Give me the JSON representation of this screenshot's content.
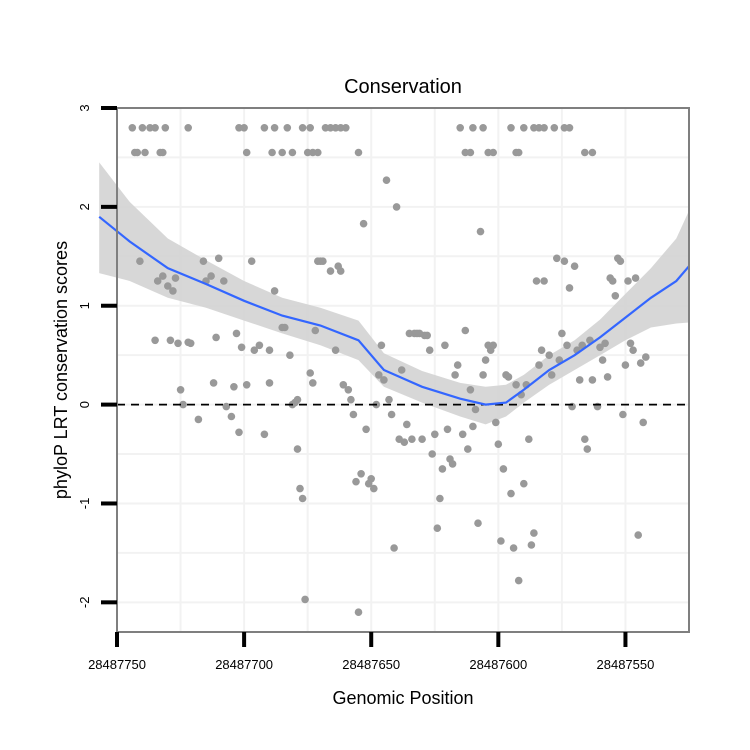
{
  "chart_data": {
    "type": "scatter",
    "title": "Conservation",
    "xlabel": "Genomic Position",
    "ylabel": "phyloP LRT conservation scores",
    "xlim": [
      28487750,
      28487525
    ],
    "x_reversed": true,
    "ylim": [
      -2.3,
      3
    ],
    "x_ticks": [
      28487750,
      28487700,
      28487650,
      28487600,
      28487550
    ],
    "y_ticks": [
      -2,
      -1,
      0,
      1,
      2,
      3
    ],
    "grid": true,
    "reference_line": {
      "y": 0,
      "style": "dashed"
    },
    "colors": {
      "points": "#999999",
      "smooth": "#3366ff",
      "band": "#d3d3d3",
      "panel_border": "#7f7f7f",
      "grid": "#f2f2f2"
    },
    "points": [
      [
        28487743,
        2.55
      ],
      [
        28487744,
        2.8
      ],
      [
        28487742,
        2.55
      ],
      [
        28487740,
        2.8
      ],
      [
        28487739,
        2.55
      ],
      [
        28487737,
        2.8
      ],
      [
        28487735,
        2.8
      ],
      [
        28487733,
        2.55
      ],
      [
        28487732,
        2.55
      ],
      [
        28487731,
        2.8
      ],
      [
        28487722,
        2.8
      ],
      [
        28487702,
        2.8
      ],
      [
        28487700,
        2.8
      ],
      [
        28487699,
        2.55
      ],
      [
        28487692,
        2.8
      ],
      [
        28487689,
        2.55
      ],
      [
        28487688,
        2.8
      ],
      [
        28487685,
        2.55
      ],
      [
        28487683,
        2.8
      ],
      [
        28487681,
        2.55
      ],
      [
        28487677,
        2.8
      ],
      [
        28487675,
        2.55
      ],
      [
        28487674,
        2.8
      ],
      [
        28487673,
        2.55
      ],
      [
        28487671,
        2.55
      ],
      [
        28487668,
        2.8
      ],
      [
        28487666,
        2.8
      ],
      [
        28487664,
        2.8
      ],
      [
        28487662,
        2.8
      ],
      [
        28487660,
        2.8
      ],
      [
        28487655,
        2.55
      ],
      [
        28487615,
        2.8
      ],
      [
        28487613,
        2.55
      ],
      [
        28487611,
        2.55
      ],
      [
        28487610,
        2.8
      ],
      [
        28487606,
        2.8
      ],
      [
        28487604,
        2.55
      ],
      [
        28487602,
        2.55
      ],
      [
        28487595,
        2.8
      ],
      [
        28487593,
        2.55
      ],
      [
        28487592,
        2.55
      ],
      [
        28487590,
        2.8
      ],
      [
        28487586,
        2.8
      ],
      [
        28487584,
        2.8
      ],
      [
        28487582,
        2.8
      ],
      [
        28487578,
        2.8
      ],
      [
        28487574,
        2.8
      ],
      [
        28487572,
        2.8
      ],
      [
        28487566,
        2.55
      ],
      [
        28487563,
        2.55
      ],
      [
        28487741,
        1.45
      ],
      [
        28487735,
        0.65
      ],
      [
        28487734,
        1.25
      ],
      [
        28487732,
        1.3
      ],
      [
        28487730,
        1.2
      ],
      [
        28487729,
        0.65
      ],
      [
        28487728,
        1.15
      ],
      [
        28487727,
        1.28
      ],
      [
        28487726,
        0.62
      ],
      [
        28487725,
        0.15
      ],
      [
        28487724,
        0.0
      ],
      [
        28487722,
        0.63
      ],
      [
        28487721,
        0.62
      ],
      [
        28487718,
        -0.15
      ],
      [
        28487716,
        1.45
      ],
      [
        28487715,
        1.25
      ],
      [
        28487713,
        1.3
      ],
      [
        28487712,
        0.22
      ],
      [
        28487711,
        0.68
      ],
      [
        28487710,
        1.48
      ],
      [
        28487708,
        1.25
      ],
      [
        28487707,
        -0.02
      ],
      [
        28487705,
        -0.12
      ],
      [
        28487704,
        0.18
      ],
      [
        28487703,
        0.72
      ],
      [
        28487702,
        -0.28
      ],
      [
        28487701,
        0.58
      ],
      [
        28487699,
        0.2
      ],
      [
        28487697,
        1.45
      ],
      [
        28487696,
        0.55
      ],
      [
        28487694,
        0.6
      ],
      [
        28487692,
        -0.3
      ],
      [
        28487690,
        0.22
      ],
      [
        28487690,
        0.55
      ],
      [
        28487688,
        1.15
      ],
      [
        28487685,
        0.78
      ],
      [
        28487684,
        0.78
      ],
      [
        28487682,
        0.5
      ],
      [
        28487681,
        0.0
      ],
      [
        28487680,
        0.02
      ],
      [
        28487679,
        -0.45
      ],
      [
        28487679,
        0.05
      ],
      [
        28487678,
        -0.85
      ],
      [
        28487677,
        -0.95
      ],
      [
        28487676,
        -1.97
      ],
      [
        28487674,
        0.32
      ],
      [
        28487673,
        0.22
      ],
      [
        28487672,
        0.75
      ],
      [
        28487671,
        1.45
      ],
      [
        28487670,
        1.45
      ],
      [
        28487669,
        1.45
      ],
      [
        28487666,
        1.35
      ],
      [
        28487664,
        0.55
      ],
      [
        28487663,
        1.4
      ],
      [
        28487662,
        1.35
      ],
      [
        28487661,
        0.2
      ],
      [
        28487659,
        0.15
      ],
      [
        28487658,
        0.05
      ],
      [
        28487657,
        -0.1
      ],
      [
        28487656,
        -0.78
      ],
      [
        28487655,
        -2.1
      ],
      [
        28487654,
        -0.7
      ],
      [
        28487653,
        1.83
      ],
      [
        28487652,
        -0.25
      ],
      [
        28487651,
        -0.8
      ],
      [
        28487650,
        -0.75
      ],
      [
        28487649,
        -0.85
      ],
      [
        28487648,
        0.0
      ],
      [
        28487647,
        0.3
      ],
      [
        28487646,
        0.6
      ],
      [
        28487645,
        0.25
      ],
      [
        28487644,
        2.27
      ],
      [
        28487643,
        0.05
      ],
      [
        28487642,
        -0.1
      ],
      [
        28487641,
        -1.45
      ],
      [
        28487640,
        2.0
      ],
      [
        28487639,
        -0.35
      ],
      [
        28487638,
        0.35
      ],
      [
        28487637,
        -0.38
      ],
      [
        28487636,
        -0.2
      ],
      [
        28487635,
        0.72
      ],
      [
        28487634,
        -0.35
      ],
      [
        28487633,
        0.72
      ],
      [
        28487632,
        0.72
      ],
      [
        28487631,
        0.72
      ],
      [
        28487630,
        -0.35
      ],
      [
        28487629,
        0.7
      ],
      [
        28487628,
        0.7
      ],
      [
        28487627,
        0.55
      ],
      [
        28487626,
        -0.5
      ],
      [
        28487625,
        -0.3
      ],
      [
        28487624,
        -1.25
      ],
      [
        28487623,
        -0.95
      ],
      [
        28487622,
        -0.65
      ],
      [
        28487621,
        0.6
      ],
      [
        28487620,
        -0.25
      ],
      [
        28487619,
        -0.55
      ],
      [
        28487618,
        -0.6
      ],
      [
        28487617,
        0.3
      ],
      [
        28487616,
        0.4
      ],
      [
        28487614,
        -0.3
      ],
      [
        28487613,
        0.75
      ],
      [
        28487612,
        -0.45
      ],
      [
        28487611,
        0.15
      ],
      [
        28487610,
        -0.22
      ],
      [
        28487609,
        -0.05
      ],
      [
        28487608,
        -1.2
      ],
      [
        28487607,
        1.75
      ],
      [
        28487606,
        0.3
      ],
      [
        28487605,
        0.45
      ],
      [
        28487604,
        0.6
      ],
      [
        28487603,
        0.55
      ],
      [
        28487602,
        0.6
      ],
      [
        28487601,
        -0.18
      ],
      [
        28487600,
        -0.4
      ],
      [
        28487599,
        -1.38
      ],
      [
        28487598,
        -0.65
      ],
      [
        28487597,
        0.3
      ],
      [
        28487596,
        0.28
      ],
      [
        28487595,
        -0.9
      ],
      [
        28487594,
        -1.45
      ],
      [
        28487593,
        0.2
      ],
      [
        28487592,
        -1.78
      ],
      [
        28487591,
        0.1
      ],
      [
        28487590,
        -0.8
      ],
      [
        28487589,
        0.2
      ],
      [
        28487588,
        -0.35
      ],
      [
        28487587,
        -1.42
      ],
      [
        28487586,
        -1.3
      ],
      [
        28487585,
        1.25
      ],
      [
        28487584,
        0.4
      ],
      [
        28487583,
        0.55
      ],
      [
        28487582,
        1.25
      ],
      [
        28487580,
        0.5
      ],
      [
        28487579,
        0.3
      ],
      [
        28487577,
        1.48
      ],
      [
        28487576,
        0.45
      ],
      [
        28487575,
        0.72
      ],
      [
        28487574,
        1.45
      ],
      [
        28487573,
        0.6
      ],
      [
        28487572,
        1.18
      ],
      [
        28487571,
        -0.02
      ],
      [
        28487570,
        1.4
      ],
      [
        28487569,
        0.55
      ],
      [
        28487568,
        0.25
      ],
      [
        28487567,
        0.6
      ],
      [
        28487566,
        -0.35
      ],
      [
        28487565,
        -0.45
      ],
      [
        28487564,
        0.65
      ],
      [
        28487563,
        0.25
      ],
      [
        28487561,
        -0.02
      ],
      [
        28487560,
        0.58
      ],
      [
        28487559,
        0.45
      ],
      [
        28487558,
        0.62
      ],
      [
        28487557,
        0.28
      ],
      [
        28487556,
        1.28
      ],
      [
        28487555,
        1.25
      ],
      [
        28487554,
        1.1
      ],
      [
        28487553,
        1.48
      ],
      [
        28487552,
        1.45
      ],
      [
        28487551,
        -0.1
      ],
      [
        28487550,
        0.4
      ],
      [
        28487549,
        1.25
      ],
      [
        28487548,
        0.62
      ],
      [
        28487547,
        0.55
      ],
      [
        28487546,
        1.28
      ],
      [
        28487545,
        -1.32
      ],
      [
        28487544,
        0.42
      ],
      [
        28487543,
        -0.18
      ],
      [
        28487542,
        0.48
      ]
    ],
    "smooth_series": {
      "x": [
        28487757,
        28487745,
        28487730,
        28487715,
        28487700,
        28487685,
        28487670,
        28487655,
        28487645,
        28487630,
        28487615,
        28487605,
        28487597,
        28487590,
        28487580,
        28487570,
        28487560,
        28487550,
        28487540,
        28487530,
        28487525
      ],
      "y": [
        1.9,
        1.65,
        1.38,
        1.22,
        1.05,
        0.9,
        0.8,
        0.65,
        0.35,
        0.18,
        0.06,
        0.0,
        0.02,
        0.15,
        0.35,
        0.5,
        0.68,
        0.88,
        1.08,
        1.25,
        1.4
      ],
      "lower": [
        1.33,
        1.25,
        1.08,
        0.98,
        0.85,
        0.72,
        0.6,
        0.45,
        0.18,
        0.02,
        -0.12,
        -0.2,
        -0.12,
        0.02,
        0.2,
        0.35,
        0.5,
        0.65,
        0.78,
        0.82,
        0.83
      ],
      "upper": [
        2.45,
        2.05,
        1.68,
        1.46,
        1.25,
        1.08,
        0.98,
        0.85,
        0.52,
        0.34,
        0.22,
        0.18,
        0.2,
        0.3,
        0.5,
        0.65,
        0.86,
        1.12,
        1.38,
        1.68,
        1.96
      ]
    }
  }
}
